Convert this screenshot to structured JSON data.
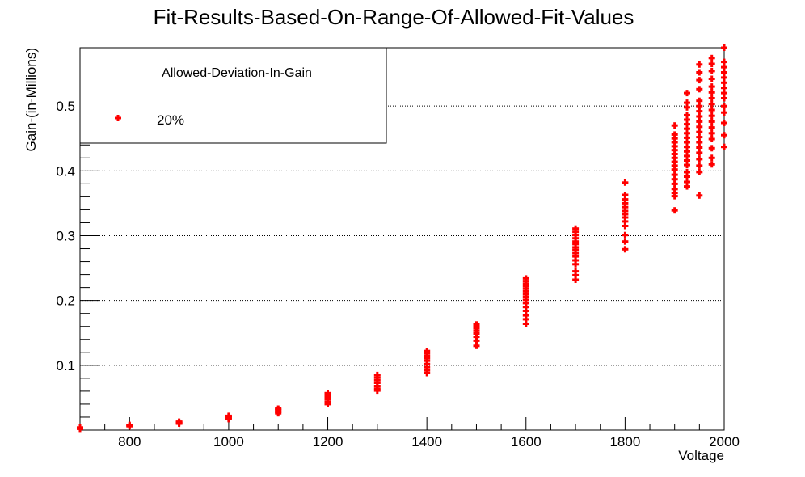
{
  "chart_data": {
    "type": "scatter",
    "title": "Fit-Results-Based-On-Range-Of-Allowed-Fit-Values",
    "xlabel": "Voltage",
    "ylabel": "Gain-(in-Millions)",
    "xlim": [
      700,
      2000
    ],
    "ylim": [
      0,
      0.59
    ],
    "x_ticks": [
      800,
      1000,
      1200,
      1400,
      1600,
      1800,
      2000
    ],
    "y_ticks": [
      0.1,
      0.2,
      0.3,
      0.4,
      0.5
    ],
    "grid": {
      "x": false,
      "y": true
    },
    "legend": {
      "title": "Allowed-Deviation-In-Gain",
      "position": "top-left",
      "entries": [
        "20%"
      ]
    },
    "series": [
      {
        "name": "20%",
        "color": "#ff0000",
        "marker": "plus",
        "groups": [
          {
            "x": 700,
            "y": [
              0.002,
              0.003,
              0.004
            ]
          },
          {
            "x": 800,
            "y": [
              0.006,
              0.007,
              0.008
            ]
          },
          {
            "x": 900,
            "y": [
              0.01,
              0.011,
              0.012,
              0.013
            ]
          },
          {
            "x": 1000,
            "y": [
              0.017,
              0.019,
              0.021,
              0.022
            ]
          },
          {
            "x": 1100,
            "y": [
              0.026,
              0.028,
              0.03,
              0.032,
              0.033
            ]
          },
          {
            "x": 1200,
            "y": [
              0.04,
              0.044,
              0.048,
              0.051,
              0.054,
              0.057
            ]
          },
          {
            "x": 1300,
            "y": [
              0.061,
              0.064,
              0.068,
              0.073,
              0.077,
              0.081,
              0.085
            ]
          },
          {
            "x": 1400,
            "y": [
              0.088,
              0.092,
              0.097,
              0.102,
              0.107,
              0.111,
              0.115,
              0.119,
              0.122
            ]
          },
          {
            "x": 1500,
            "y": [
              0.13,
              0.138,
              0.144,
              0.149,
              0.153,
              0.157,
              0.16,
              0.163
            ]
          },
          {
            "x": 1600,
            "y": [
              0.164,
              0.171,
              0.177,
              0.184,
              0.19,
              0.196,
              0.201,
              0.206,
              0.21,
              0.214,
              0.218,
              0.222,
              0.226,
              0.23,
              0.234
            ]
          },
          {
            "x": 1700,
            "y": [
              0.232,
              0.239,
              0.245,
              0.256,
              0.262,
              0.268,
              0.273,
              0.278,
              0.282,
              0.287,
              0.291,
              0.296,
              0.301,
              0.306,
              0.311
            ]
          },
          {
            "x": 1800,
            "y": [
              0.279,
              0.291,
              0.301,
              0.315,
              0.322,
              0.328,
              0.333,
              0.338,
              0.344,
              0.35,
              0.356,
              0.363,
              0.382
            ]
          },
          {
            "x": 1900,
            "y": [
              0.339,
              0.361,
              0.366,
              0.372,
              0.38,
              0.387,
              0.394,
              0.402,
              0.408,
              0.414,
              0.42,
              0.426,
              0.432,
              0.438,
              0.444,
              0.45,
              0.456,
              0.47
            ]
          },
          {
            "x": 1925,
            "y": [
              0.376,
              0.383,
              0.391,
              0.398,
              0.409,
              0.416,
              0.423,
              0.43,
              0.437,
              0.444,
              0.451,
              0.458,
              0.465,
              0.472,
              0.479,
              0.486,
              0.498,
              0.505,
              0.52
            ]
          },
          {
            "x": 1950,
            "y": [
              0.362,
              0.398,
              0.408,
              0.418,
              0.428,
              0.436,
              0.444,
              0.452,
              0.46,
              0.468,
              0.476,
              0.484,
              0.492,
              0.5,
              0.508,
              0.526,
              0.54,
              0.552,
              0.564
            ]
          },
          {
            "x": 1975,
            "y": [
              0.41,
              0.42,
              0.435,
              0.449,
              0.458,
              0.467,
              0.476,
              0.485,
              0.494,
              0.503,
              0.512,
              0.521,
              0.53,
              0.542,
              0.554,
              0.565,
              0.574
            ]
          },
          {
            "x": 2000,
            "y": [
              0.437,
              0.455,
              0.474,
              0.49,
              0.5,
              0.512,
              0.52,
              0.528,
              0.536,
              0.544,
              0.552,
              0.56,
              0.568,
              0.59
            ]
          }
        ]
      }
    ]
  }
}
